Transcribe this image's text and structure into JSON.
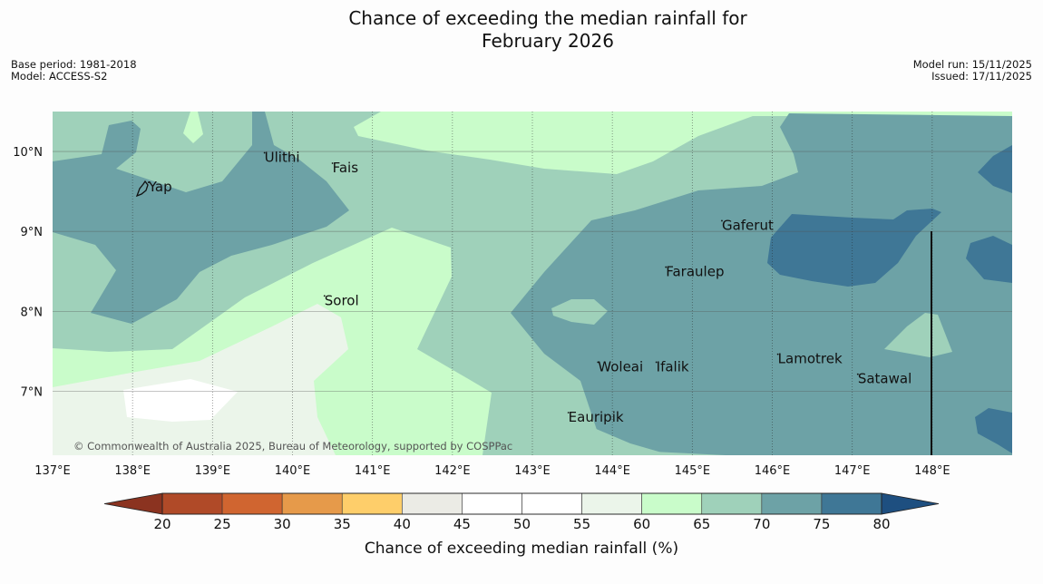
{
  "title": {
    "line1": "Chance of exceeding the median rainfall for",
    "line2": "February 2026"
  },
  "meta": {
    "base_period": "Base period: 1981-2018",
    "model": "Model: ACCESS-S2",
    "model_run": "Model run: 15/11/2025",
    "issued": "Issued: 17/11/2025"
  },
  "map": {
    "lon_range": [
      137,
      149
    ],
    "lat_range": [
      6.2,
      10.5
    ],
    "lon_ticks": [
      137,
      138,
      139,
      140,
      141,
      142,
      143,
      144,
      145,
      146,
      147,
      148
    ],
    "lon_tick_labels": [
      "137°E",
      "138°E",
      "139°E",
      "140°E",
      "141°E",
      "142°E",
      "143°E",
      "144°E",
      "145°E",
      "146°E",
      "147°E",
      "148°E"
    ],
    "lat_ticks": [
      7,
      8,
      9,
      10
    ],
    "lat_tick_labels": [
      "7°N",
      "8°N",
      "9°N",
      "10°N"
    ],
    "places": [
      {
        "name": "Yap",
        "lon": 138.2,
        "lat": 9.5
      },
      {
        "name": "Ulithi",
        "lon": 139.65,
        "lat": 9.87
      },
      {
        "name": "Fais",
        "lon": 140.5,
        "lat": 9.74
      },
      {
        "name": "Gaferut",
        "lon": 145.37,
        "lat": 9.02
      },
      {
        "name": "Faraulep",
        "lon": 144.67,
        "lat": 8.44
      },
      {
        "name": "Sorol",
        "lon": 140.4,
        "lat": 8.08
      },
      {
        "name": "Lamotrek",
        "lon": 146.07,
        "lat": 7.35
      },
      {
        "name": "Woleai",
        "lon": 143.82,
        "lat": 7.25
      },
      {
        "name": "Ifalik",
        "lon": 144.55,
        "lat": 7.25
      },
      {
        "name": "Satawal",
        "lon": 147.07,
        "lat": 7.1
      },
      {
        "name": "Eauripik",
        "lon": 143.45,
        "lat": 6.62
      }
    ],
    "copyright": "© Commonwealth of Australia 2025, Bureau of Meteorology, supported by COSPPac"
  },
  "colorbar": {
    "title": "Chance of exceeding median rainfall (%)",
    "bounds": [
      20,
      25,
      30,
      35,
      40,
      45,
      50,
      55,
      60,
      65,
      70,
      75,
      80
    ],
    "colors": [
      "#b04a28",
      "#d06530",
      "#e69a4a",
      "#fece6a",
      "#ebebe5",
      "#ffffff",
      "#ffffff",
      "#ebf5ea",
      "#c9fcca",
      "#9fd1ba",
      "#6da2a6",
      "#3f7796"
    ],
    "under_color": "#8b3320",
    "over_color": "#1e4f80"
  },
  "colors": {
    "c55_60": "#ebf5ea",
    "c60_65": "#c9fcca",
    "c65_70": "#9fd1ba",
    "c70_75": "#6da2a6",
    "c75_80": "#3f7796",
    "white": "#ffffff"
  }
}
